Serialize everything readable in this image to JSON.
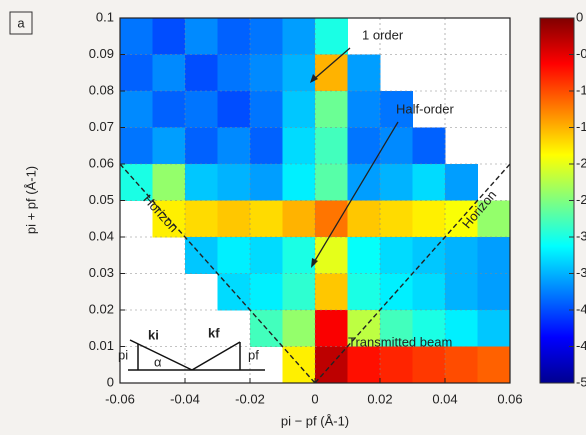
{
  "chart_data": {
    "type": "heatmap",
    "panel_label": "a",
    "xlabel": "pi − pf (Å-1)",
    "ylabel": "pi + pf (Å-1)",
    "x": [
      -0.055,
      -0.045,
      -0.035,
      -0.025,
      -0.015,
      -0.005,
      0.005,
      0.015,
      0.025,
      0.035,
      0.045,
      0.055
    ],
    "y": [
      0.095,
      0.085,
      0.075,
      0.065,
      0.055,
      0.045,
      0.035,
      0.025,
      0.015,
      0.005
    ],
    "z": [
      [
        -3.8,
        -4.0,
        -3.7,
        -3.9,
        -3.8,
        -3.6,
        -3.0,
        null,
        null,
        null,
        null,
        null
      ],
      [
        -3.9,
        -3.7,
        -4.0,
        -3.8,
        -3.7,
        -3.5,
        -1.5,
        -3.6,
        null,
        null,
        null,
        null
      ],
      [
        -3.7,
        -3.9,
        -3.8,
        -4.0,
        -3.8,
        -3.4,
        -2.6,
        -3.7,
        -3.8,
        null,
        null,
        null
      ],
      [
        -3.8,
        -3.6,
        -3.9,
        -3.7,
        -3.9,
        -3.3,
        -2.8,
        -3.8,
        -3.7,
        -3.9,
        null,
        null
      ],
      [
        -3.0,
        -2.4,
        -3.4,
        -3.5,
        -3.6,
        -3.2,
        -2.7,
        -3.6,
        -3.5,
        -3.3,
        -3.6,
        null
      ],
      [
        null,
        -1.8,
        -1.7,
        -1.6,
        -1.7,
        -1.5,
        -1.2,
        -1.6,
        -1.7,
        -1.8,
        -1.9,
        -2.4
      ],
      [
        null,
        null,
        -3.4,
        -3.2,
        -3.3,
        -3.0,
        -2.0,
        -3.1,
        -3.3,
        -3.4,
        -3.5,
        -3.6
      ],
      [
        null,
        null,
        null,
        -3.3,
        -3.2,
        -2.9,
        -1.6,
        -3.0,
        -3.2,
        -3.3,
        -3.5,
        -3.6
      ],
      [
        null,
        null,
        null,
        null,
        -2.8,
        -2.4,
        -0.6,
        -2.2,
        -2.8,
        -3.0,
        -3.2,
        -3.4
      ],
      [
        null,
        null,
        null,
        null,
        null,
        -1.8,
        -0.3,
        -0.7,
        -0.8,
        -0.9,
        -1.0,
        -1.1
      ]
    ],
    "xlim": [
      -0.06,
      0.06
    ],
    "ylim": [
      0,
      0.1
    ],
    "xticks": [
      -0.06,
      -0.04,
      -0.02,
      0,
      0.02,
      0.04,
      0.06
    ],
    "yticks": [
      0,
      0.01,
      0.02,
      0.03,
      0.04,
      0.05,
      0.06,
      0.07,
      0.08,
      0.09,
      0.1
    ],
    "grid": true,
    "clim": [
      -5,
      0
    ],
    "cticks": [
      0,
      {
        "value": -0.5,
        "label": "-0"
      },
      -1,
      {
        "value": -1.5,
        "label": "-1"
      },
      -2,
      {
        "value": -2.5,
        "label": "-2"
      },
      -3,
      {
        "value": -3.5,
        "label": "-3"
      },
      -4,
      {
        "value": -4.5,
        "label": "-4"
      },
      -5
    ],
    "annotations": [
      "1 order",
      "Half-order",
      "Transmitted beam",
      "Horizon",
      "Horizon"
    ],
    "inset_labels": [
      "ki",
      "kf",
      "pi",
      "pf",
      "α"
    ]
  }
}
